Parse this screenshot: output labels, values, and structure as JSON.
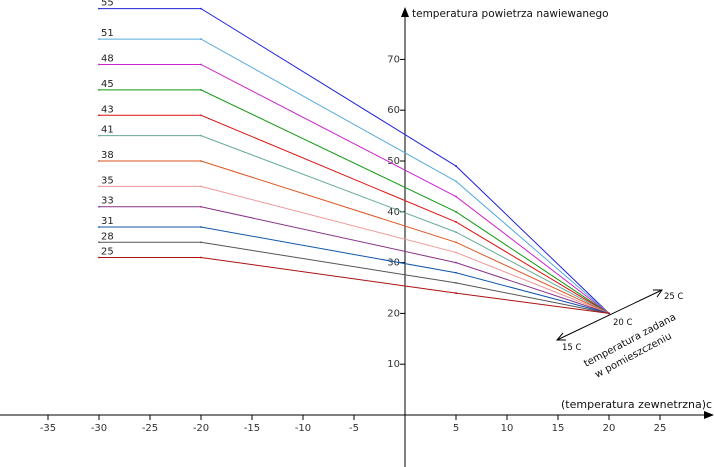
{
  "chart_data": {
    "type": "line",
    "ylabel": "temperatura powietrza nawiewanego",
    "xlabel": "(temperatura zewnetrzna)c",
    "x_ticks": [
      "-35",
      "-30",
      "-25",
      "-20",
      "-15",
      "-10",
      "-5",
      "5",
      "10",
      "15",
      "20",
      "25"
    ],
    "y_ticks": [
      "10",
      "20",
      "30",
      "40",
      "50",
      "60",
      "70"
    ],
    "xlim": [
      -40,
      30
    ],
    "ylim": [
      -10,
      80
    ],
    "room_setpoint_axis": {
      "label_line1": "temperatura zadana",
      "label_line2": "w pomieszczeniu",
      "ticks": [
        {
          "label": "15 C",
          "value": 15
        },
        {
          "label": "20 C",
          "value": 20
        },
        {
          "label": "25 C",
          "value": 25
        }
      ]
    },
    "series": [
      {
        "name": "55",
        "color": "#2222dd",
        "x": [
          -30,
          -20,
          5,
          20
        ],
        "y": [
          80,
          80,
          49,
          20
        ]
      },
      {
        "name": "51",
        "color": "#55aadd",
        "x": [
          -30,
          -20,
          5,
          20
        ],
        "y": [
          74,
          74,
          46,
          20
        ]
      },
      {
        "name": "48",
        "color": "#cc22cc",
        "x": [
          -30,
          -20,
          5,
          20
        ],
        "y": [
          69,
          69,
          43,
          20
        ]
      },
      {
        "name": "45",
        "color": "#119911",
        "x": [
          -30,
          -20,
          5,
          20
        ],
        "y": [
          64,
          64,
          40,
          20
        ]
      },
      {
        "name": "43",
        "color": "#dd1111",
        "x": [
          -30,
          -20,
          5,
          20
        ],
        "y": [
          59,
          59,
          38,
          20
        ]
      },
      {
        "name": "41",
        "color": "#66aa99",
        "x": [
          -30,
          -20,
          5,
          20
        ],
        "y": [
          55,
          55,
          36,
          20
        ]
      },
      {
        "name": "38",
        "color": "#dd5522",
        "x": [
          -30,
          -20,
          5,
          20
        ],
        "y": [
          50,
          50,
          34,
          20
        ]
      },
      {
        "name": "35",
        "color": "#ee9999",
        "x": [
          -30,
          -20,
          5,
          20
        ],
        "y": [
          45,
          45,
          32,
          20
        ]
      },
      {
        "name": "33",
        "color": "#883388",
        "x": [
          -30,
          -20,
          5,
          20
        ],
        "y": [
          41,
          41,
          30,
          20
        ]
      },
      {
        "name": "31",
        "color": "#1155aa",
        "x": [
          -30,
          -20,
          5,
          20
        ],
        "y": [
          37,
          37,
          28,
          20
        ]
      },
      {
        "name": "28",
        "color": "#555555",
        "x": [
          -30,
          -20,
          5,
          20
        ],
        "y": [
          34,
          34,
          26,
          20
        ]
      },
      {
        "name": "25",
        "color": "#aa1111",
        "x": [
          -30,
          -20,
          5,
          20
        ],
        "y": [
          31,
          31,
          24,
          20
        ]
      }
    ]
  }
}
